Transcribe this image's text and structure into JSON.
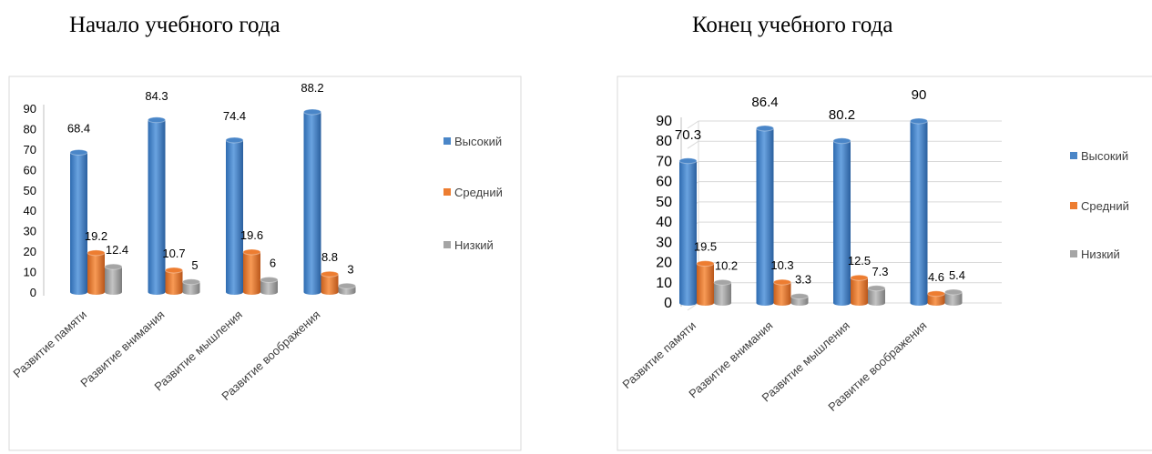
{
  "titles": [
    "Начало учебного года",
    "Конец учебного года"
  ],
  "chart_data": [
    {
      "type": "bar",
      "title": "Начало учебного года",
      "categories": [
        "Развитие памяти",
        "Развитие внимания",
        "Развитие мышления",
        "Развитие воображения"
      ],
      "series": [
        {
          "name": "Высокий",
          "values": [
            68.4,
            84.3,
            74.4,
            88.2
          ],
          "color": "#4a86c8"
        },
        {
          "name": "Средний",
          "values": [
            19.2,
            10.7,
            19.6,
            8.8
          ],
          "color": "#ed7d31"
        },
        {
          "name": "Низкий",
          "values": [
            12.4,
            5,
            6,
            3
          ],
          "color": "#a5a5a5"
        }
      ],
      "ylim": [
        0,
        90
      ],
      "yticks": [
        "0",
        "10",
        "20",
        "30",
        "40",
        "50",
        "60",
        "70",
        "80",
        "90"
      ],
      "grid": false,
      "legend": "right"
    },
    {
      "type": "bar",
      "title": "Конец учебного года",
      "categories": [
        "Развитие памяти",
        "Развитие внимания",
        "Развитие мышления",
        "Развитие воображения"
      ],
      "series": [
        {
          "name": "Высокий",
          "values": [
            70.3,
            86.4,
            80.2,
            90
          ],
          "color": "#4a86c8"
        },
        {
          "name": "Средний",
          "values": [
            19.5,
            10.3,
            12.5,
            4.6
          ],
          "color": "#ed7d31"
        },
        {
          "name": "Низкий",
          "values": [
            10.2,
            3.3,
            7.3,
            5.4
          ],
          "color": "#a5a5a5"
        }
      ],
      "ylim": [
        0,
        90
      ],
      "yticks": [
        "0",
        "10",
        "20",
        "30",
        "40",
        "50",
        "60",
        "70",
        "80",
        "90"
      ],
      "grid": true,
      "legend": "right"
    }
  ]
}
